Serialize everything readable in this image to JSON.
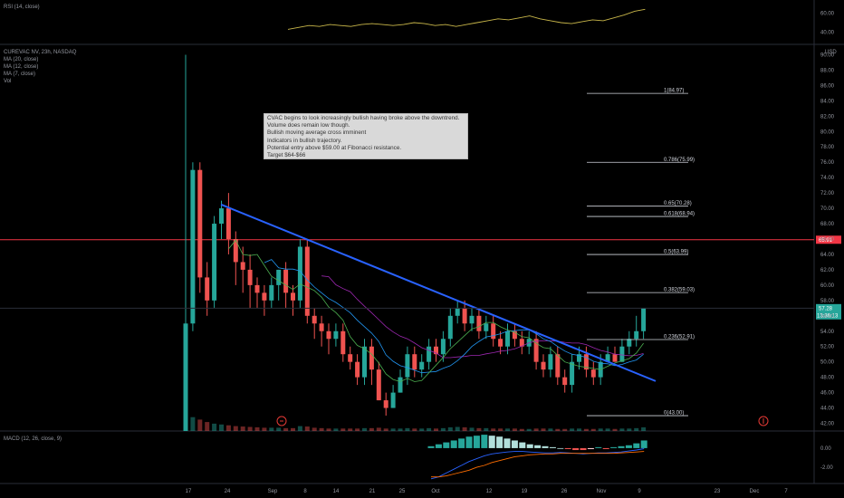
{
  "panes": {
    "rsi_legend": "RSI (14, close)",
    "main_legend": [
      "CUREVAC NV, 23h, NASDAQ",
      "MA (20, close)",
      "MA (12, close)",
      "MA (7, close)",
      "Vol"
    ],
    "macd_legend": "MACD (12, 26, close, 9)"
  },
  "annotation": {
    "lines": [
      "CVAC begins to look increasingly bullish having broke above the downtrend.",
      "Volume does remain low though.",
      "Bullish moving average cross imminent",
      "Indicators in bullish trajectory.",
      "Potential entry above $59.00 at Fibonacci resistance.",
      "Target $64-$66"
    ]
  },
  "price_badges": {
    "resistance": "65.91",
    "last": "57.28",
    "countdown": "13:36:13"
  },
  "currency_label": "USD",
  "colors": {
    "bull": "#26a69a",
    "bear": "#ef5350",
    "trendline": "#2962ff",
    "resistance": "#f23645",
    "rsi": "#c9b74a",
    "ma20": "#9c27b0",
    "ma12": "#2196f3",
    "ma7": "#4caf50",
    "macd": "#2962ff",
    "signal": "#ff6d00"
  },
  "chart_data": {
    "type": "candlestick",
    "price_axis": {
      "ticks": [
        42,
        44,
        46,
        48,
        50,
        52,
        54,
        56,
        58,
        60,
        62,
        64,
        66,
        68,
        70,
        72,
        74,
        76,
        78,
        80,
        82,
        84,
        86,
        88,
        90
      ],
      "range": [
        41,
        91
      ]
    },
    "rsi_axis": {
      "ticks": [
        40,
        60
      ]
    },
    "macd_axis": {
      "ticks": [
        -2.0,
        0.0
      ]
    },
    "x_tick_labels": [
      "17",
      "24",
      "Sep",
      "8",
      "14",
      "21",
      "25",
      "Oct",
      "12",
      "19",
      "26",
      "Nov",
      "9",
      "23",
      "Dec",
      "7"
    ],
    "fibonacci": [
      {
        "label": "1(84.97)",
        "value": 84.97
      },
      {
        "label": "0.786(75.99)",
        "value": 75.99
      },
      {
        "label": "0.65(70.28)",
        "value": 70.28
      },
      {
        "label": "0.618(68.94)",
        "value": 68.94
      },
      {
        "label": "0.5(63.99)",
        "value": 63.99
      },
      {
        "label": "0.382(59.03)",
        "value": 59.03
      },
      {
        "label": "0.236(52.91)",
        "value": 52.91
      },
      {
        "label": "0(43.00)",
        "value": 43.0
      }
    ],
    "resistance_level": 65.91,
    "trendline": {
      "start": 70.5,
      "end": 47.5
    },
    "candles": [
      [
        41,
        55,
        90,
        41,
        3.5
      ],
      [
        55,
        75,
        76,
        54,
        1.7
      ],
      [
        75,
        61,
        76,
        59,
        1.4
      ],
      [
        61,
        58,
        63,
        56,
        1.1
      ],
      [
        58,
        68,
        69,
        57,
        0.9
      ],
      [
        68,
        70,
        71,
        66,
        0.8
      ],
      [
        70,
        66,
        72,
        64,
        0.7
      ],
      [
        66,
        63,
        67,
        60,
        0.6
      ],
      [
        63,
        62,
        65,
        59,
        0.55
      ],
      [
        62,
        60,
        64,
        57,
        0.5
      ],
      [
        60,
        59,
        61,
        57,
        0.45
      ],
      [
        59,
        58,
        60,
        56,
        0.4
      ],
      [
        58,
        60,
        61,
        57,
        0.4
      ],
      [
        60,
        62,
        62,
        58,
        0.4
      ],
      [
        62,
        59,
        63,
        57,
        0.35
      ],
      [
        59,
        58,
        60,
        56,
        0.35
      ],
      [
        58,
        65,
        66,
        57,
        0.6
      ],
      [
        65,
        56,
        66,
        55,
        0.55
      ],
      [
        56,
        55,
        57,
        53,
        0.4
      ],
      [
        55,
        54,
        56,
        52,
        0.35
      ],
      [
        54,
        53,
        55,
        51,
        0.3
      ],
      [
        53,
        54,
        55,
        52,
        0.3
      ],
      [
        54,
        51,
        55,
        50,
        0.3
      ],
      [
        51,
        50,
        52,
        49,
        0.3
      ],
      [
        50,
        48,
        51,
        47,
        0.3
      ],
      [
        48,
        52,
        53,
        47,
        0.35
      ],
      [
        52,
        49,
        53,
        47,
        0.35
      ],
      [
        49,
        45,
        50,
        45,
        0.4
      ],
      [
        45,
        44,
        46,
        43,
        0.3
      ],
      [
        44,
        46,
        47,
        44,
        0.3
      ],
      [
        46,
        48,
        49,
        46,
        0.3
      ],
      [
        48,
        51,
        52,
        47,
        0.35
      ],
      [
        51,
        49,
        52,
        48,
        0.3
      ],
      [
        49,
        50,
        51,
        48,
        0.3
      ],
      [
        50,
        52,
        53,
        49,
        0.35
      ],
      [
        52,
        51,
        53,
        50,
        0.3
      ],
      [
        51,
        53,
        54,
        50,
        0.35
      ],
      [
        53,
        56,
        57,
        52,
        0.45
      ],
      [
        56,
        57,
        58,
        55,
        0.5
      ],
      [
        57,
        55,
        58,
        54,
        0.45
      ],
      [
        55,
        56,
        57,
        54,
        0.4
      ],
      [
        56,
        54,
        57,
        53,
        0.35
      ],
      [
        54,
        55,
        56,
        53,
        0.35
      ],
      [
        55,
        53,
        56,
        52,
        0.3
      ],
      [
        53,
        52,
        54,
        51,
        0.3
      ],
      [
        52,
        54,
        55,
        51,
        0.3
      ],
      [
        54,
        53,
        55,
        52,
        0.3
      ],
      [
        53,
        52,
        54,
        51,
        0.25
      ],
      [
        52,
        53,
        54,
        51,
        0.25
      ],
      [
        53,
        50,
        54,
        49,
        0.3
      ],
      [
        50,
        49,
        51,
        48,
        0.3
      ],
      [
        49,
        51,
        52,
        48,
        0.3
      ],
      [
        51,
        48,
        52,
        47,
        0.25
      ],
      [
        48,
        47,
        49,
        46,
        0.25
      ],
      [
        47,
        50,
        51,
        46,
        0.3
      ],
      [
        50,
        51,
        52,
        49,
        0.3
      ],
      [
        51,
        49,
        52,
        48,
        0.25
      ],
      [
        49,
        48,
        50,
        47,
        0.25
      ],
      [
        48,
        50,
        51,
        47,
        0.3
      ],
      [
        50,
        51,
        52,
        50,
        0.3
      ],
      [
        51,
        50,
        52,
        50,
        0.25
      ],
      [
        50,
        52,
        53,
        50,
        0.3
      ],
      [
        52,
        53,
        54,
        51,
        0.3
      ],
      [
        53,
        54,
        56,
        52,
        0.35
      ],
      [
        54,
        57,
        57,
        53,
        0.45
      ]
    ],
    "rsi_values": [
      43,
      45,
      47,
      46,
      48,
      47,
      46,
      48,
      49,
      48,
      47,
      48,
      50,
      49,
      47,
      48,
      46,
      48,
      50,
      52,
      54,
      53,
      55,
      57,
      54,
      52,
      50,
      49,
      51,
      53,
      52,
      55,
      58,
      62,
      64
    ],
    "macd_hist": [
      0.2,
      0.4,
      0.6,
      0.8,
      1.0,
      1.2,
      1.3,
      1.4,
      1.3,
      1.2,
      1.0,
      0.8,
      0.6,
      0.4,
      0.3,
      0.2,
      0.1,
      0.0,
      -0.1,
      -0.2,
      -0.2,
      -0.1,
      0.1,
      -0.1,
      0.1,
      0.2,
      0.3,
      0.5,
      0.8
    ],
    "macd_line": [
      -3.2,
      -3.0,
      -2.6,
      -2.2,
      -1.8,
      -1.4,
      -1.1,
      -0.8,
      -0.6,
      -0.5,
      -0.4,
      -0.35,
      -0.35,
      -0.4,
      -0.45,
      -0.5,
      -0.5,
      -0.45,
      -0.5,
      -0.55,
      -0.6,
      -0.55,
      -0.5,
      -0.5,
      -0.45,
      -0.4,
      -0.3,
      -0.2,
      -0.05
    ],
    "signal_line": [
      -3.0,
      -3.0,
      -2.9,
      -2.7,
      -2.5,
      -2.3,
      -2.0,
      -1.8,
      -1.5,
      -1.3,
      -1.1,
      -0.9,
      -0.8,
      -0.7,
      -0.65,
      -0.6,
      -0.6,
      -0.55,
      -0.55,
      -0.55,
      -0.55,
      -0.55,
      -0.55,
      -0.55,
      -0.55,
      -0.5,
      -0.45,
      -0.4,
      -0.35
    ]
  }
}
